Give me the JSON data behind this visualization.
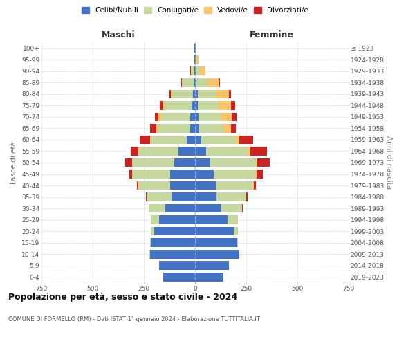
{
  "age_groups": [
    "0-4",
    "5-9",
    "10-14",
    "15-19",
    "20-24",
    "25-29",
    "30-34",
    "35-39",
    "40-44",
    "45-49",
    "50-54",
    "55-59",
    "60-64",
    "65-69",
    "70-74",
    "75-79",
    "80-84",
    "85-89",
    "90-94",
    "95-99",
    "100+"
  ],
  "birth_years": [
    "2019-2023",
    "2014-2018",
    "2009-2013",
    "2004-2008",
    "1999-2003",
    "1994-1998",
    "1989-1993",
    "1984-1988",
    "1979-1983",
    "1974-1978",
    "1969-1973",
    "1964-1968",
    "1959-1963",
    "1954-1958",
    "1949-1953",
    "1944-1948",
    "1939-1943",
    "1934-1938",
    "1929-1933",
    "1924-1928",
    "≤ 1923"
  ],
  "male": {
    "celibe": [
      155,
      175,
      220,
      215,
      200,
      175,
      145,
      115,
      120,
      120,
      100,
      80,
      40,
      25,
      22,
      18,
      10,
      5,
      3,
      2,
      2
    ],
    "coniugato": [
      0,
      0,
      2,
      5,
      15,
      40,
      80,
      120,
      155,
      185,
      205,
      195,
      175,
      155,
      145,
      130,
      100,
      55,
      15,
      3,
      1
    ],
    "vedovo": [
      0,
      0,
      0,
      0,
      0,
      0,
      0,
      0,
      1,
      1,
      2,
      3,
      5,
      8,
      12,
      10,
      8,
      5,
      3,
      1,
      0
    ],
    "divorziato": [
      0,
      0,
      0,
      0,
      0,
      1,
      2,
      5,
      8,
      15,
      35,
      35,
      50,
      30,
      18,
      15,
      8,
      3,
      1,
      0,
      0
    ]
  },
  "female": {
    "nubile": [
      140,
      165,
      215,
      205,
      190,
      160,
      130,
      105,
      100,
      90,
      75,
      55,
      30,
      20,
      18,
      15,
      12,
      8,
      5,
      3,
      2
    ],
    "coniugata": [
      0,
      0,
      2,
      5,
      20,
      50,
      100,
      145,
      185,
      205,
      220,
      200,
      165,
      120,
      110,
      100,
      90,
      55,
      20,
      5,
      2
    ],
    "vedova": [
      0,
      0,
      0,
      0,
      0,
      0,
      0,
      1,
      2,
      5,
      10,
      15,
      20,
      35,
      50,
      60,
      65,
      55,
      25,
      8,
      1
    ],
    "divorziata": [
      0,
      0,
      0,
      0,
      0,
      1,
      2,
      5,
      10,
      30,
      60,
      80,
      70,
      25,
      25,
      20,
      10,
      5,
      1,
      0,
      0
    ]
  },
  "colors": {
    "celibe": "#4472c4",
    "coniugato": "#c5d8a0",
    "vedovo": "#f9c56a",
    "divorziato": "#cc2222"
  },
  "title": "Popolazione per età, sesso e stato civile - 2024",
  "subtitle": "COMUNE DI FORMELLO (RM) - Dati ISTAT 1° gennaio 2024 - Elaborazione TUTTITALIA.IT",
  "xlabel_left": "Maschi",
  "xlabel_right": "Femmine",
  "ylabel_left": "Fasce di età",
  "ylabel_right": "Anni di nascita",
  "xlim": 750,
  "legend_labels": [
    "Celibi/Nubili",
    "Coniugati/e",
    "Vedovi/e",
    "Divorziati/e"
  ],
  "bg_color": "#ffffff",
  "grid_color": "#cccccc"
}
